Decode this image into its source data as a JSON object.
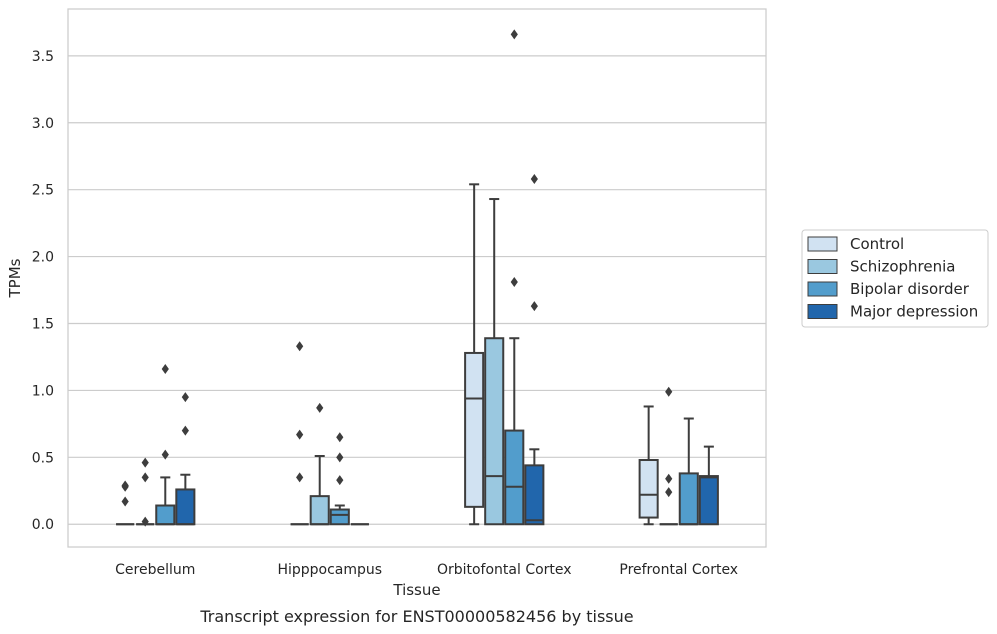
{
  "chart_data": {
    "type": "box",
    "title": "",
    "caption": "Transcript expression for ENST00000582456 by tissue",
    "xlabel": "Tissue",
    "ylabel": "TPMs",
    "ylim": [
      -0.17,
      3.85
    ],
    "yticks": [
      "0.0",
      "0.5",
      "1.0",
      "1.5",
      "2.0",
      "2.5",
      "3.0",
      "3.5"
    ],
    "grid": "horizontal",
    "legend_position": "right",
    "categories": [
      "Cerebellum",
      "Hipppocampus",
      "Orbitofontal Cortex",
      "Prefrontal Cortex"
    ],
    "series": [
      {
        "name": "Control",
        "color": "#d1e2f2",
        "boxes": [
          {
            "q1": 0,
            "median": 0,
            "q3": 0,
            "whisker_low": 0,
            "whisker_high": 0,
            "outliers": [
              0.29,
              0.28,
              0.17
            ]
          },
          {
            "q1": 0,
            "median": 0,
            "q3": 0,
            "whisker_low": 0,
            "whisker_high": 0,
            "outliers": [
              1.33,
              0.67,
              0.35
            ]
          },
          {
            "q1": 0.13,
            "median": 0.94,
            "q3": 1.28,
            "whisker_low": 0,
            "whisker_high": 2.54,
            "outliers": []
          },
          {
            "q1": 0.05,
            "median": 0.22,
            "q3": 0.48,
            "whisker_low": 0,
            "whisker_high": 0.88,
            "outliers": []
          }
        ]
      },
      {
        "name": "Schizophrenia",
        "color": "#9ac8e0",
        "boxes": [
          {
            "q1": 0,
            "median": 0,
            "q3": 0,
            "whisker_low": 0,
            "whisker_high": 0,
            "outliers": [
              0.46,
              0.35,
              0.02
            ]
          },
          {
            "q1": 0,
            "median": 0,
            "q3": 0.21,
            "whisker_low": 0,
            "whisker_high": 0.51,
            "outliers": [
              0.87
            ]
          },
          {
            "q1": 0,
            "median": 0.36,
            "q3": 1.39,
            "whisker_low": 0,
            "whisker_high": 2.43,
            "outliers": []
          },
          {
            "q1": 0,
            "median": 0,
            "q3": 0,
            "whisker_low": 0,
            "whisker_high": 0,
            "outliers": [
              0.99,
              0.34,
              0.24
            ]
          }
        ]
      },
      {
        "name": "Bipolar disorder",
        "color": "#529dcc",
        "boxes": [
          {
            "q1": 0,
            "median": 0,
            "q3": 0.14,
            "whisker_low": 0,
            "whisker_high": 0.35,
            "outliers": [
              1.16,
              0.52
            ]
          },
          {
            "q1": 0,
            "median": 0.07,
            "q3": 0.11,
            "whisker_low": 0,
            "whisker_high": 0.14,
            "outliers": [
              0.65,
              0.5,
              0.33
            ]
          },
          {
            "q1": 0,
            "median": 0.28,
            "q3": 0.7,
            "whisker_low": 0,
            "whisker_high": 1.39,
            "outliers": [
              3.66,
              1.81
            ]
          },
          {
            "q1": 0,
            "median": 0,
            "q3": 0.38,
            "whisker_low": 0,
            "whisker_high": 0.79,
            "outliers": []
          }
        ]
      },
      {
        "name": "Major depression",
        "color": "#2166ac",
        "boxes": [
          {
            "q1": 0,
            "median": 0,
            "q3": 0.26,
            "whisker_low": 0,
            "whisker_high": 0.37,
            "outliers": [
              0.95,
              0.7
            ]
          },
          {
            "q1": 0,
            "median": 0,
            "q3": 0,
            "whisker_low": 0,
            "whisker_high": 0,
            "outliers": []
          },
          {
            "q1": 0,
            "median": 0.03,
            "q3": 0.44,
            "whisker_low": 0,
            "whisker_high": 0.56,
            "outliers": [
              2.58,
              1.63
            ]
          },
          {
            "q1": 0,
            "median": 0.35,
            "q3": 0.36,
            "whisker_low": 0,
            "whisker_high": 0.58,
            "outliers": []
          }
        ]
      }
    ]
  }
}
